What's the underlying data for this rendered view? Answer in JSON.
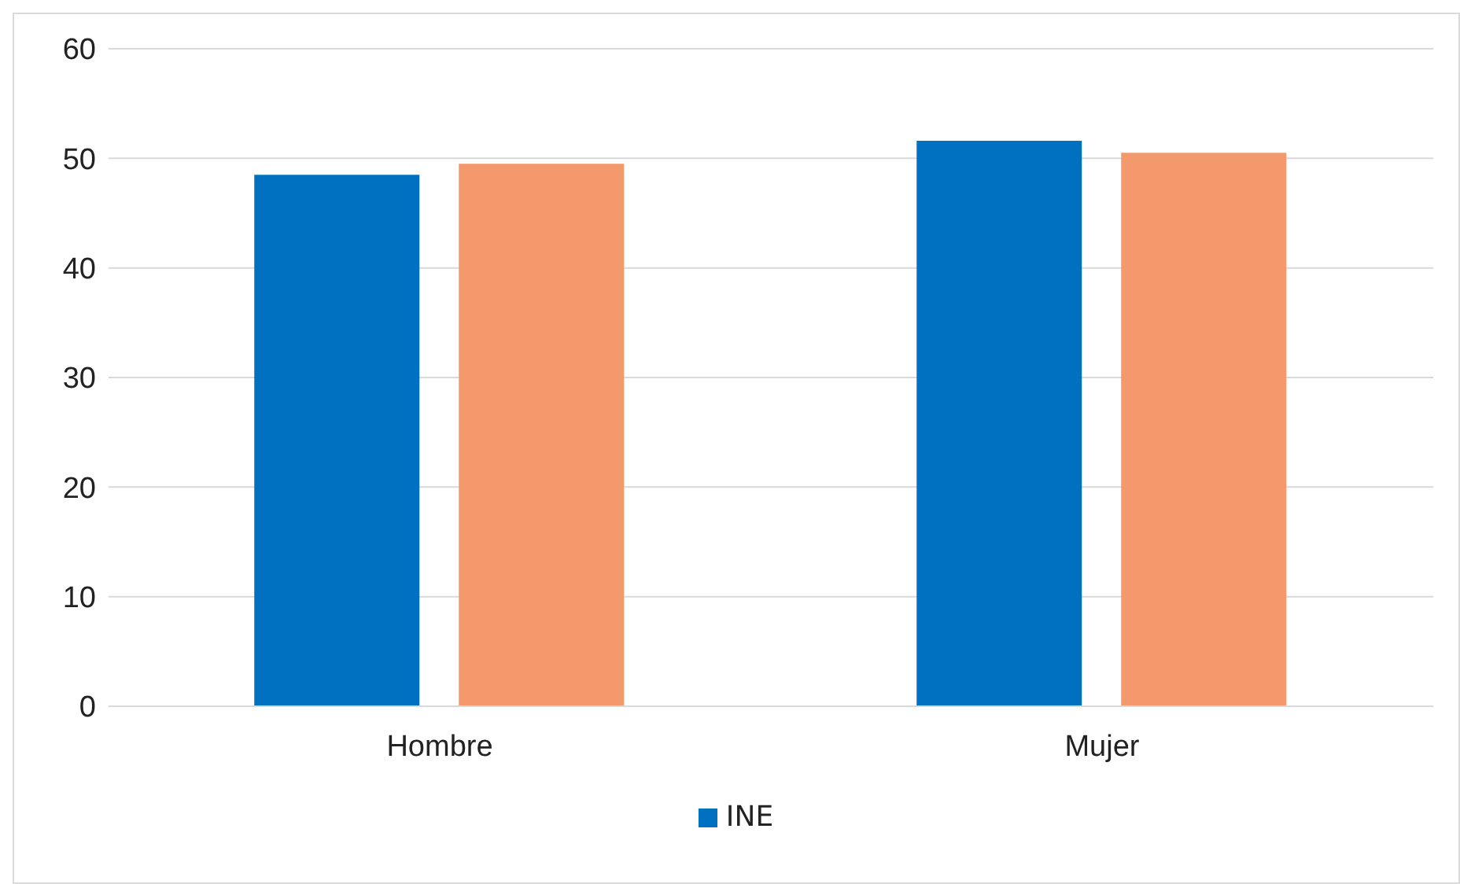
{
  "chart_data": {
    "type": "bar",
    "categories": [
      "Hombre",
      "Mujer"
    ],
    "series": [
      {
        "name": "INE",
        "color": "#0070c0",
        "values": [
          48.5,
          51.6
        ]
      },
      {
        "color": "#f4996b",
        "values": [
          49.5,
          50.5
        ]
      }
    ],
    "ylim": [
      0,
      60
    ],
    "yticks": [
      0,
      10,
      20,
      30,
      40,
      50,
      60
    ],
    "grid": "y",
    "legend": "bottom"
  }
}
